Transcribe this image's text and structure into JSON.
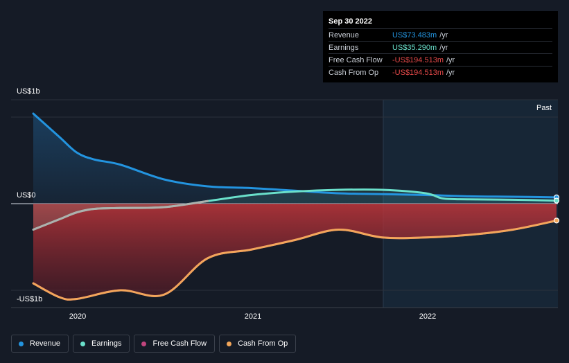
{
  "tooltip": {
    "date": "Sep 30 2022",
    "rows": [
      {
        "label": "Revenue",
        "value": "US$73.483m",
        "unit": "/yr",
        "color": "#2394df"
      },
      {
        "label": "Earnings",
        "value": "US$35.290m",
        "unit": "/yr",
        "color": "#6ae0cb"
      },
      {
        "label": "Free Cash Flow",
        "value": "-US$194.513m",
        "unit": "/yr",
        "color": "#e84a4a"
      },
      {
        "label": "Cash From Op",
        "value": "-US$194.513m",
        "unit": "/yr",
        "color": "#e84a4a"
      }
    ]
  },
  "past_label": "Past",
  "legend": [
    {
      "label": "Revenue",
      "color": "#2394df"
    },
    {
      "label": "Earnings",
      "color": "#6ae0cb"
    },
    {
      "label": "Free Cash Flow",
      "color": "#c1457e"
    },
    {
      "label": "Cash From Op",
      "color": "#f2a65a"
    }
  ],
  "chart_data": {
    "type": "area",
    "y_unit": "US$ millions",
    "ylim": [
      -1200,
      1200
    ],
    "y_tick_labels": [
      "US$1b",
      "US$0",
      "-US$1b"
    ],
    "x_tick_labels": [
      "2020",
      "2021",
      "2022"
    ],
    "x_range": [
      2019.75,
      2022.75
    ],
    "past_region_start": 2021.75,
    "series": [
      {
        "name": "Revenue",
        "color": "#2394df",
        "x": [
          2019.75,
          2019.9,
          2020.0,
          2020.1,
          2020.25,
          2020.5,
          2020.75,
          2021.0,
          2021.25,
          2021.5,
          2021.75,
          2022.0,
          2022.25,
          2022.5,
          2022.75
        ],
        "y": [
          1040,
          770,
          590,
          510,
          450,
          280,
          200,
          180,
          150,
          120,
          110,
          100,
          85,
          80,
          73
        ]
      },
      {
        "name": "Earnings",
        "color": "#6ae0cb",
        "x": [
          2019.75,
          2019.9,
          2020.0,
          2020.1,
          2020.25,
          2020.5,
          2020.75,
          2021.0,
          2021.25,
          2021.5,
          2021.75,
          2022.0,
          2022.1,
          2022.25,
          2022.5,
          2022.75
        ],
        "y": [
          -300,
          -180,
          -100,
          -60,
          -50,
          -40,
          30,
          100,
          140,
          160,
          160,
          120,
          60,
          50,
          45,
          35
        ]
      },
      {
        "name": "Free Cash Flow",
        "color": "#c1457e",
        "x": [
          2019.75,
          2019.9,
          2020.0,
          2020.25,
          2020.5,
          2020.75,
          2021.0,
          2021.25,
          2021.5,
          2021.75,
          2022.0,
          2022.25,
          2022.5,
          2022.75
        ],
        "y": [
          -920,
          -1080,
          -1100,
          -1000,
          -1050,
          -630,
          -530,
          -420,
          -300,
          -390,
          -390,
          -360,
          -300,
          -195
        ]
      },
      {
        "name": "Cash From Op",
        "color": "#f2a65a",
        "x": [
          2019.75,
          2019.9,
          2020.0,
          2020.25,
          2020.5,
          2020.75,
          2021.0,
          2021.25,
          2021.5,
          2021.75,
          2022.0,
          2022.25,
          2022.5,
          2022.75
        ],
        "y": [
          -920,
          -1080,
          -1100,
          -1000,
          -1050,
          -630,
          -530,
          -420,
          -300,
          -390,
          -390,
          -360,
          -300,
          -195
        ]
      }
    ],
    "grid": true,
    "legend_position": "bottom-left"
  }
}
